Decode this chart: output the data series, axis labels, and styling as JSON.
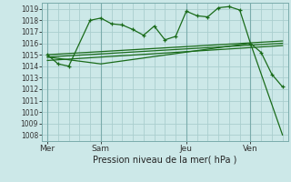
{
  "bg_color": "#cce8e8",
  "grid_color": "#aacece",
  "line_color": "#1a6b1a",
  "ylabel": "Pression niveau de la mer( hPa )",
  "ylim": [
    1007.5,
    1019.5
  ],
  "yticks": [
    1008,
    1009,
    1010,
    1011,
    1012,
    1013,
    1014,
    1015,
    1016,
    1017,
    1018,
    1019
  ],
  "day_labels": [
    "Mer",
    "Sam",
    "Jeu",
    "Ven"
  ],
  "day_positions": [
    0,
    5,
    13,
    19
  ],
  "xlim": [
    -0.5,
    22.5
  ],
  "series1_x": [
    0,
    1,
    2,
    4,
    5,
    6,
    7,
    8,
    9,
    10,
    11,
    12,
    13,
    14,
    15,
    16,
    17,
    18,
    19,
    20,
    21,
    22
  ],
  "series1_y": [
    1015.0,
    1014.2,
    1014.0,
    1018.0,
    1018.2,
    1017.7,
    1017.6,
    1017.2,
    1016.7,
    1017.5,
    1016.3,
    1016.6,
    1018.8,
    1018.4,
    1018.3,
    1019.1,
    1019.2,
    1018.9,
    1016.0,
    1015.2,
    1013.3,
    1012.2
  ],
  "trendline1_x": [
    0,
    22
  ],
  "trendline1_y": [
    1015.0,
    1016.2
  ],
  "trendline2_x": [
    0,
    22
  ],
  "trendline2_y": [
    1014.8,
    1016.0
  ],
  "trendline3_x": [
    0,
    22
  ],
  "trendline3_y": [
    1014.5,
    1015.8
  ],
  "dropline_x": [
    0,
    5,
    19,
    22
  ],
  "dropline_y": [
    1014.8,
    1014.2,
    1016.0,
    1008.0
  ],
  "vline_positions": [
    0,
    5,
    13,
    19
  ]
}
